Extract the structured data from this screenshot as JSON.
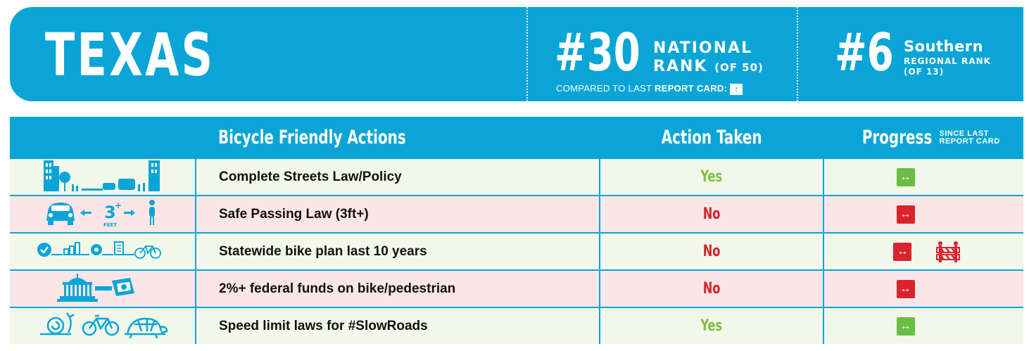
{
  "header": {
    "state": "TEXAS",
    "national_rank": "#30",
    "national_label_1": "NATIONAL",
    "national_label_2": "RANK",
    "national_of": "(OF 50)",
    "compare_prefix": "COMPARED TO LAST ",
    "compare_bold": "REPORT CARD:",
    "compare_arrow": "↑",
    "regional_rank": "#6",
    "regional_name": "Southern",
    "regional_label": "REGIONAL RANK",
    "regional_of": "(OF 13)"
  },
  "table": {
    "col_actions": "Bicycle Friendly Actions",
    "col_taken": "Action Taken",
    "col_progress": "Progress",
    "since_1": "SINCE LAST",
    "since_2": "REPORT CARD",
    "rows": [
      {
        "icon": "complete-streets-icon",
        "action": "Complete Streets Law/Policy",
        "taken": "Yes",
        "progress": "↔"
      },
      {
        "icon": "safe-passing-icon",
        "action": "Safe Passing Law (3ft+)",
        "taken": "No",
        "progress": "↔",
        "icon_text": "3",
        "icon_sub": "FEET"
      },
      {
        "icon": "bike-plan-icon",
        "action": "Statewide bike plan last 10 years",
        "taken": "No",
        "progress": "↔",
        "extra_icon": "road-barrier-icon"
      },
      {
        "icon": "federal-funds-icon",
        "action": "2%+ federal funds on bike/pedestrian",
        "taken": "No",
        "progress": "↔"
      },
      {
        "icon": "slow-roads-icon",
        "action": "Speed limit laws for #SlowRoads",
        "taken": "Yes",
        "progress": "↔"
      }
    ]
  },
  "colors": {
    "brand_blue": "#0aa5d6",
    "yes_green": "#7cc242",
    "no_red": "#d9232d",
    "row_green": "#f2f7ea",
    "row_red": "#fbe6e7"
  }
}
